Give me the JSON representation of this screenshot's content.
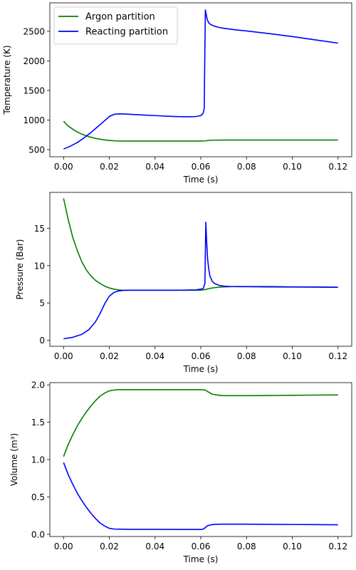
{
  "chart_data": [
    {
      "type": "line",
      "xlabel": "Time (s)",
      "ylabel": "Temperature (K)",
      "xlim": [
        -0.006,
        0.126
      ],
      "ylim": [
        380,
        2980
      ],
      "xticks": [
        0.0,
        0.02,
        0.04,
        0.06,
        0.08,
        0.1,
        0.12
      ],
      "xtick_labels": [
        "0.00",
        "0.02",
        "0.04",
        "0.06",
        "0.08",
        "0.10",
        "0.12"
      ],
      "yticks": [
        500,
        1000,
        1500,
        2000,
        2500
      ],
      "ytick_labels": [
        "500",
        "1000",
        "1500",
        "2000",
        "2500"
      ],
      "legend": {
        "placement": "upper-left"
      },
      "series": [
        {
          "name": "Argon partition",
          "color": "#008000",
          "x": [
            0.0,
            0.002,
            0.005,
            0.008,
            0.011,
            0.014,
            0.017,
            0.02,
            0.023,
            0.026,
            0.03,
            0.04,
            0.05,
            0.06,
            0.0623,
            0.0635,
            0.065,
            0.07,
            0.08,
            0.09,
            0.1,
            0.11,
            0.12
          ],
          "y": [
            980,
            900,
            820,
            760,
            720,
            690,
            670,
            655,
            648,
            645,
            645,
            645,
            645,
            645,
            648,
            658,
            660,
            662,
            662,
            662,
            662,
            662,
            662
          ]
        },
        {
          "name": "Reacting partition",
          "color": "#0000ff",
          "x": [
            0.0,
            0.003,
            0.006,
            0.009,
            0.012,
            0.015,
            0.018,
            0.02,
            0.022,
            0.024,
            0.026,
            0.03,
            0.035,
            0.04,
            0.045,
            0.05,
            0.055,
            0.058,
            0.06,
            0.061,
            0.0615,
            0.062,
            0.0623,
            0.0628,
            0.0635,
            0.0645,
            0.066,
            0.068,
            0.07,
            0.075,
            0.08,
            0.09,
            0.1,
            0.11,
            0.12
          ],
          "y": [
            510,
            560,
            620,
            700,
            790,
            890,
            990,
            1060,
            1095,
            1105,
            1103,
            1095,
            1085,
            1075,
            1065,
            1058,
            1055,
            1060,
            1075,
            1110,
            1200,
            2860,
            2800,
            2700,
            2640,
            2610,
            2585,
            2565,
            2550,
            2525,
            2505,
            2460,
            2410,
            2355,
            2300
          ]
        }
      ]
    },
    {
      "type": "line",
      "xlabel": "Time (s)",
      "ylabel": "Pressure (Bar)",
      "xlim": [
        -0.006,
        0.126
      ],
      "ylim": [
        -0.8,
        19.8
      ],
      "xticks": [
        0.0,
        0.02,
        0.04,
        0.06,
        0.08,
        0.1,
        0.12
      ],
      "xtick_labels": [
        "0.00",
        "0.02",
        "0.04",
        "0.06",
        "0.08",
        "0.10",
        "0.12"
      ],
      "yticks": [
        0,
        5,
        10,
        15
      ],
      "ytick_labels": [
        "0",
        "5",
        "10",
        "15"
      ],
      "series": [
        {
          "color": "#008000",
          "x": [
            0.0,
            0.002,
            0.004,
            0.006,
            0.008,
            0.01,
            0.012,
            0.014,
            0.016,
            0.018,
            0.02,
            0.022,
            0.024,
            0.026,
            0.03,
            0.04,
            0.05,
            0.06,
            0.062,
            0.064,
            0.066,
            0.07,
            0.075,
            0.08,
            0.09,
            0.1,
            0.11,
            0.12
          ],
          "y": [
            19.0,
            16.2,
            13.8,
            12.0,
            10.5,
            9.4,
            8.6,
            8.0,
            7.6,
            7.25,
            7.0,
            6.85,
            6.75,
            6.7,
            6.7,
            6.7,
            6.7,
            6.7,
            6.8,
            6.95,
            7.05,
            7.15,
            7.2,
            7.2,
            7.2,
            7.15,
            7.15,
            7.1
          ]
        },
        {
          "color": "#0000ff",
          "x": [
            0.0,
            0.004,
            0.008,
            0.011,
            0.014,
            0.016,
            0.018,
            0.02,
            0.022,
            0.024,
            0.026,
            0.028,
            0.03,
            0.04,
            0.05,
            0.058,
            0.061,
            0.0618,
            0.0622,
            0.0626,
            0.063,
            0.0635,
            0.064,
            0.065,
            0.066,
            0.068,
            0.07,
            0.073,
            0.076,
            0.08,
            0.09,
            0.1,
            0.11,
            0.12
          ],
          "y": [
            0.2,
            0.4,
            0.8,
            1.4,
            2.5,
            3.6,
            4.9,
            5.9,
            6.4,
            6.6,
            6.68,
            6.7,
            6.7,
            6.7,
            6.7,
            6.75,
            6.9,
            7.6,
            15.8,
            13.0,
            10.8,
            9.5,
            8.6,
            7.9,
            7.6,
            7.35,
            7.25,
            7.2,
            7.18,
            7.18,
            7.15,
            7.13,
            7.12,
            7.1
          ]
        }
      ]
    },
    {
      "type": "line",
      "xlabel": "Time (s)",
      "ylabel": "Volume (m³)",
      "xlim": [
        -0.006,
        0.126
      ],
      "ylim": [
        -0.03,
        2.03
      ],
      "xticks": [
        0.0,
        0.02,
        0.04,
        0.06,
        0.08,
        0.1,
        0.12
      ],
      "xtick_labels": [
        "0.00",
        "0.02",
        "0.04",
        "0.06",
        "0.08",
        "0.10",
        "0.12"
      ],
      "yticks": [
        0.0,
        0.5,
        1.0,
        1.5,
        2.0
      ],
      "ytick_labels": [
        "0.0",
        "0.5",
        "1.0",
        "1.5",
        "2.0"
      ],
      "series": [
        {
          "color": "#008000",
          "x": [
            0.0,
            0.002,
            0.004,
            0.006,
            0.008,
            0.01,
            0.012,
            0.014,
            0.016,
            0.018,
            0.02,
            0.022,
            0.024,
            0.03,
            0.04,
            0.05,
            0.06,
            0.062,
            0.063,
            0.065,
            0.068,
            0.07,
            0.08,
            0.09,
            0.1,
            0.11,
            0.12
          ],
          "y": [
            1.04,
            1.2,
            1.33,
            1.45,
            1.55,
            1.64,
            1.72,
            1.79,
            1.85,
            1.89,
            1.92,
            1.93,
            1.935,
            1.935,
            1.935,
            1.935,
            1.935,
            1.93,
            1.91,
            1.875,
            1.86,
            1.855,
            1.855,
            1.857,
            1.86,
            1.863,
            1.865
          ]
        },
        {
          "color": "#0000ff",
          "x": [
            0.0,
            0.002,
            0.004,
            0.006,
            0.008,
            0.01,
            0.012,
            0.014,
            0.016,
            0.018,
            0.02,
            0.022,
            0.024,
            0.03,
            0.04,
            0.05,
            0.06,
            0.061,
            0.062,
            0.063,
            0.065,
            0.068,
            0.07,
            0.08,
            0.09,
            0.1,
            0.11,
            0.12
          ],
          "y": [
            0.96,
            0.8,
            0.67,
            0.55,
            0.45,
            0.36,
            0.28,
            0.21,
            0.15,
            0.11,
            0.08,
            0.07,
            0.068,
            0.066,
            0.066,
            0.065,
            0.065,
            0.068,
            0.09,
            0.115,
            0.13,
            0.135,
            0.135,
            0.135,
            0.133,
            0.131,
            0.129,
            0.127
          ]
        }
      ]
    }
  ]
}
